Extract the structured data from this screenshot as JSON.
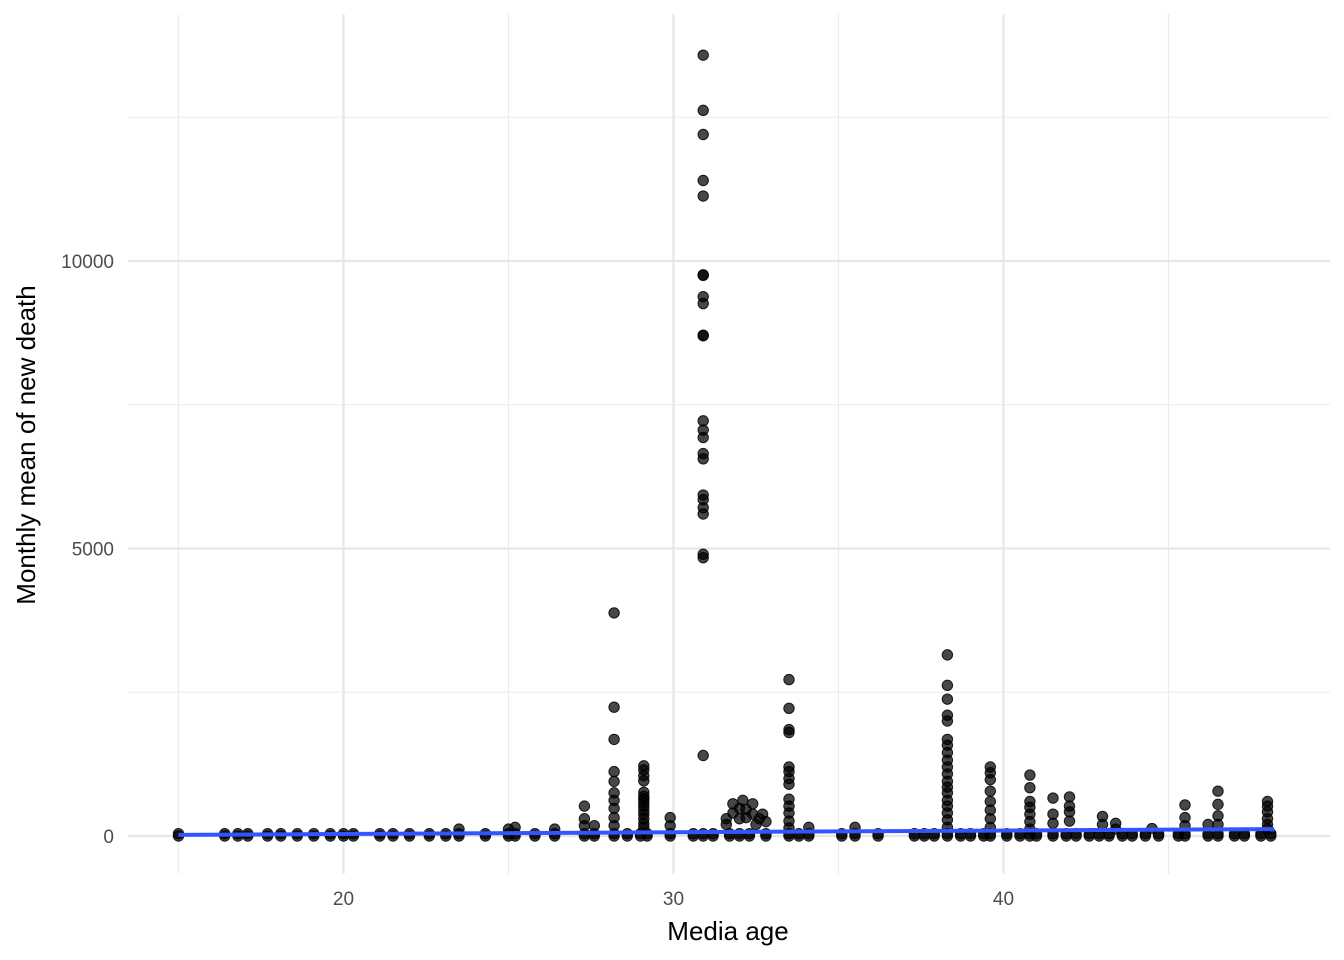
{
  "chart_data": {
    "type": "scatter",
    "xlabel": "Media age",
    "ylabel": "Monthly mean of new death",
    "xlim": [
      14.5,
      48.8
    ],
    "ylim": [
      -650,
      14000
    ],
    "x_ticks": [
      20,
      30,
      40
    ],
    "x_tick_labels": [
      "20",
      "30",
      "40"
    ],
    "y_ticks": [
      0,
      5000,
      10000
    ],
    "y_tick_labels": [
      "0",
      "5000",
      "10000"
    ],
    "grid": true,
    "legend": "none",
    "point_color": "#000000",
    "trend_color": "#3355ff",
    "trend_line": {
      "x": [
        15,
        48.2
      ],
      "y": [
        20,
        120
      ]
    },
    "base_x": [
      15.0,
      16.4,
      16.8,
      17.1,
      17.7,
      18.1,
      18.6,
      19.1,
      19.6,
      20.0,
      20.3,
      21.1,
      21.5,
      22.0,
      22.6,
      23.1,
      23.5,
      24.3,
      25.0,
      25.2,
      25.8,
      26.4,
      27.3,
      27.6,
      28.2,
      28.6,
      29.0,
      29.2,
      29.9,
      30.6,
      30.9,
      31.2,
      31.7,
      32.0,
      32.3,
      32.8,
      33.5,
      33.8,
      34.1,
      35.1,
      35.5,
      36.2,
      37.3,
      37.6,
      37.9,
      38.3,
      38.7,
      39.0,
      39.4,
      39.6,
      40.1,
      40.5,
      40.8,
      41.0,
      41.5,
      41.9,
      42.2,
      42.6,
      42.9,
      43.2,
      43.6,
      43.9,
      44.3,
      44.7,
      45.3,
      45.5,
      46.2,
      46.5,
      47.0,
      47.3,
      47.8,
      48.1
    ],
    "series": [
      {
        "x": [
          30.9,
          30.9,
          30.9,
          30.9,
          30.9,
          30.9,
          30.9,
          30.9,
          30.9,
          30.9,
          30.9,
          30.9,
          30.9,
          30.9,
          30.9,
          30.9,
          30.9,
          30.9,
          30.9,
          30.9,
          30.9,
          30.9,
          30.9
        ],
        "y": [
          13580,
          12620,
          12200,
          11400,
          11130,
          9760,
          9750,
          9380,
          9260,
          8710,
          8700,
          7220,
          7060,
          6930,
          6650,
          6560,
          5930,
          5850,
          5710,
          5600,
          4900,
          4840,
          1400
        ]
      },
      {
        "x": [
          28.2,
          28.2,
          28.2,
          28.2,
          28.2,
          28.2,
          28.2,
          28.2,
          28.2,
          28.2
        ],
        "y": [
          3880,
          2240,
          1680,
          1120,
          950,
          750,
          620,
          480,
          320,
          180
        ]
      },
      {
        "x": [
          29.1,
          29.1,
          29.1,
          29.1,
          29.1,
          29.1,
          29.1,
          29.1,
          29.1,
          29.1,
          29.1,
          29.1,
          29.1,
          29.1
        ],
        "y": [
          1220,
          1150,
          1050,
          960,
          760,
          690,
          640,
          580,
          520,
          450,
          380,
          300,
          220,
          150
        ]
      },
      {
        "x": [
          33.5,
          33.5,
          33.5,
          33.5,
          33.5,
          33.5,
          33.5,
          33.5,
          33.5,
          33.5,
          33.5,
          33.5,
          33.5
        ],
        "y": [
          2720,
          2220,
          1850,
          1800,
          1200,
          1120,
          1000,
          900,
          640,
          520,
          400,
          260,
          140
        ]
      },
      {
        "x": [
          38.3,
          38.3,
          38.3,
          38.3,
          38.3,
          38.3,
          38.3,
          38.3,
          38.3,
          38.3,
          38.3,
          38.3,
          38.3,
          38.3,
          38.3,
          38.3,
          38.3,
          38.3,
          38.3
        ],
        "y": [
          3150,
          2620,
          2380,
          2100,
          2000,
          1680,
          1580,
          1450,
          1320,
          1200,
          1080,
          950,
          850,
          750,
          620,
          520,
          400,
          280,
          150
        ]
      },
      {
        "x": [
          39.6,
          39.6,
          39.6,
          39.6,
          39.6,
          39.6,
          39.6,
          39.6
        ],
        "y": [
          1200,
          1100,
          980,
          780,
          600,
          450,
          300,
          150
        ]
      },
      {
        "x": [
          40.8,
          40.8,
          40.8,
          40.8,
          40.8,
          40.8,
          40.8
        ],
        "y": [
          1060,
          840,
          600,
          500,
          380,
          250,
          120
        ]
      },
      {
        "x": [
          41.5,
          41.5,
          41.5,
          42.0,
          42.0,
          42.0,
          42.0
        ],
        "y": [
          660,
          380,
          220,
          680,
          520,
          420,
          260
        ]
      },
      {
        "x": [
          43.0,
          43.0,
          43.4,
          43.4,
          44.5,
          45.5,
          45.5,
          45.5,
          46.2,
          46.5,
          46.5,
          46.5,
          46.5,
          48.0,
          48.0,
          48.0,
          48.0,
          48.0,
          48.0
        ],
        "y": [
          340,
          200,
          220,
          120,
          130,
          540,
          320,
          180,
          200,
          780,
          550,
          350,
          200,
          600,
          520,
          420,
          300,
          200,
          120
        ]
      },
      {
        "x": [
          27.3,
          27.3,
          27.3,
          27.6,
          29.9,
          29.9,
          31.6,
          31.6,
          31.8,
          31.8,
          32.0,
          32.0,
          32.1,
          32.2,
          32.2,
          32.4,
          32.4,
          32.5,
          32.6,
          32.7,
          32.8,
          34.1,
          35.5,
          25.2,
          25.0,
          23.5,
          26.4
        ],
        "y": [
          520,
          300,
          180,
          180,
          320,
          180,
          300,
          200,
          560,
          400,
          480,
          300,
          620,
          460,
          320,
          560,
          380,
          200,
          300,
          380,
          250,
          150,
          150,
          150,
          120,
          120,
          120
        ]
      }
    ]
  }
}
